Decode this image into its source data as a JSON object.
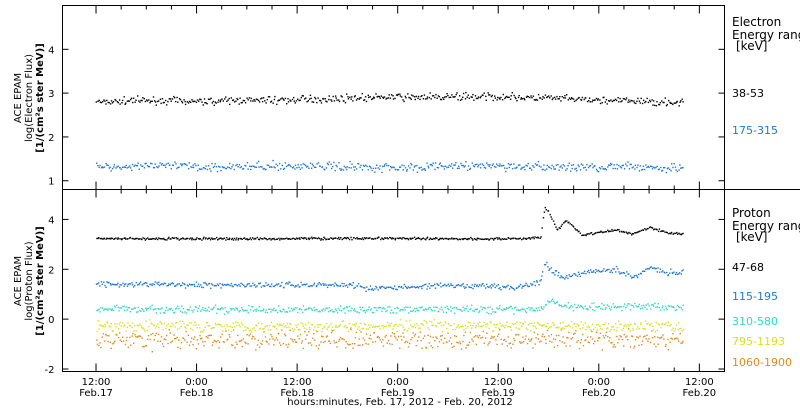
{
  "x_axis": {
    "caption": "hours:minutes, Feb. 17, 2012 - Feb. 20, 2012",
    "ticks": [
      {
        "t": 0,
        "time": "12:00",
        "date": "Feb.17"
      },
      {
        "t": 12,
        "time": "0:00",
        "date": "Feb.18"
      },
      {
        "t": 24,
        "time": "12:00",
        "date": "Feb.18"
      },
      {
        "t": 36,
        "time": "0:00",
        "date": "Feb.19"
      },
      {
        "t": 48,
        "time": "12:00",
        "date": "Feb.19"
      },
      {
        "t": 60,
        "time": "0:00",
        "date": "Feb.20"
      },
      {
        "t": 72,
        "time": "12:00",
        "date": "Feb.20"
      }
    ]
  },
  "panels": {
    "electron": {
      "ylabel": [
        "ACE EPAM",
        "log(Electron Flux)",
        "[1/(cm²s ster MeV)]"
      ],
      "legend_title": [
        "Electron",
        "Energy range",
        "[keV]"
      ],
      "channels": [
        {
          "label": "38-53",
          "color": "#000000"
        },
        {
          "label": "175-315",
          "color": "#1f78d0"
        }
      ]
    },
    "proton": {
      "ylabel": [
        "ACE EPAM",
        "log(Proton Flux)",
        "[1/(cm²s ster MeV)]"
      ],
      "legend_title": [
        "Proton",
        "Energy range",
        "[keV]"
      ],
      "channels": [
        {
          "label": "47-68",
          "color": "#000000"
        },
        {
          "label": "115-195",
          "color": "#1f78d0"
        },
        {
          "label": "310-580",
          "color": "#2fd8c8"
        },
        {
          "label": "795-1193",
          "color": "#d8e020"
        },
        {
          "label": "1060-1900",
          "color": "#e08a1a"
        }
      ]
    }
  },
  "chart_data": [
    {
      "type": "scatter",
      "x_unit": "hours since 12:00 Feb. 17, 2012",
      "xlim": [
        -4,
        75
      ],
      "ylim": [
        0.8,
        5
      ],
      "yticks": [
        1,
        2,
        3,
        4
      ],
      "series": [
        {
          "name": "38-53",
          "color": "#000000",
          "x": [
            0,
            6,
            12,
            18,
            24,
            30,
            36,
            42,
            48,
            54,
            60,
            66,
            70
          ],
          "y": [
            2.82,
            2.85,
            2.83,
            2.85,
            2.86,
            2.9,
            2.92,
            2.93,
            2.93,
            2.9,
            2.85,
            2.82,
            2.8
          ]
        },
        {
          "name": "175-315",
          "color": "#1f78d0",
          "x": [
            0,
            6,
            12,
            18,
            24,
            30,
            36,
            42,
            48,
            54,
            60,
            66,
            70
          ],
          "y": [
            1.33,
            1.36,
            1.33,
            1.34,
            1.35,
            1.34,
            1.32,
            1.35,
            1.35,
            1.32,
            1.33,
            1.32,
            1.3
          ]
        }
      ]
    },
    {
      "type": "scatter",
      "x_unit": "hours since 12:00 Feb. 17, 2012",
      "xlim": [
        -4,
        75
      ],
      "ylim": [
        -2.1,
        5.2
      ],
      "yticks": [
        -2,
        0,
        2,
        4
      ],
      "series": [
        {
          "name": "47-68",
          "color": "#000000",
          "x": [
            0,
            10,
            20,
            30,
            40,
            50,
            53,
            53.5,
            54,
            55,
            56,
            58,
            60,
            62,
            64,
            66,
            68,
            70
          ],
          "y": [
            3.25,
            3.25,
            3.25,
            3.27,
            3.25,
            3.25,
            3.3,
            4.5,
            4.3,
            3.6,
            4.0,
            3.4,
            3.5,
            3.6,
            3.45,
            3.7,
            3.5,
            3.45
          ]
        },
        {
          "name": "115-195",
          "color": "#1f78d0",
          "x": [
            0,
            10,
            20,
            30,
            33,
            36,
            40,
            46,
            50,
            53,
            53.5,
            54,
            56,
            58,
            60,
            62,
            64,
            66,
            68,
            70
          ],
          "y": [
            1.45,
            1.4,
            1.4,
            1.4,
            1.25,
            1.3,
            1.35,
            1.35,
            1.3,
            1.5,
            2.4,
            2.0,
            1.7,
            1.9,
            2.0,
            2.0,
            1.7,
            2.1,
            1.9,
            1.9
          ]
        },
        {
          "name": "310-580",
          "color": "#2fd8c8",
          "x": [
            0,
            10,
            20,
            30,
            40,
            50,
            53,
            54,
            56,
            60,
            65,
            70
          ],
          "y": [
            0.45,
            0.4,
            0.4,
            0.4,
            0.42,
            0.4,
            0.45,
            0.75,
            0.55,
            0.5,
            0.55,
            0.5
          ]
        },
        {
          "name": "795-1193",
          "color": "#d8e020",
          "x": [
            0,
            10,
            20,
            30,
            40,
            50,
            60,
            70
          ],
          "y": [
            -0.25,
            -0.25,
            -0.25,
            -0.25,
            -0.25,
            -0.25,
            -0.25,
            -0.25
          ]
        },
        {
          "name": "1060-1900",
          "color": "#e08a1a",
          "x": [
            0,
            10,
            20,
            30,
            40,
            50,
            60,
            70
          ],
          "y": [
            -0.8,
            -0.8,
            -0.8,
            -0.8,
            -0.8,
            -0.8,
            -0.8,
            -0.8
          ]
        }
      ]
    }
  ]
}
